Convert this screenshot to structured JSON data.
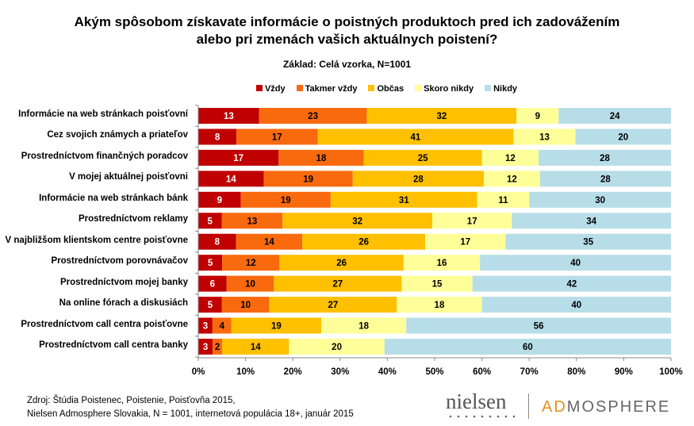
{
  "chart_data": {
    "type": "bar",
    "orientation": "horizontal",
    "stacked": true,
    "title": "Akým spôsobom získavate informácie o poistných produktoch pred ich zadovážením alebo pri zmenách vašich aktuálnych poistení?",
    "title_lines": [
      "Akým spôsobom získavate informácie o poistných produktoch pred ich zadovážením",
      "alebo pri zmenách vašich aktuálnych poistení?"
    ],
    "subtitle": "Základ: Celá vzorka, N=1001",
    "xlim": [
      0,
      100
    ],
    "xticks": [
      "0%",
      "10%",
      "20%",
      "30%",
      "40%",
      "50%",
      "60%",
      "70%",
      "80%",
      "90%",
      "100%"
    ],
    "legend_position": "top",
    "categories": [
      "Informácie na web stránkach poisťovní",
      "Cez svojich známych a priateľov",
      "Prostredníctvom finančných poradcov",
      "V mojej aktuálnej poisťovni",
      "Informácie na web stránkach bánk",
      "Prostredníctvom reklamy",
      "V najbližšom klientskom centre poisťovne",
      "Prostredníctvom porovnávačov",
      "Prostredníctvom mojej banky",
      "Na online fórach a diskusiách",
      "Prostredníctvom call centra poisťovne",
      "Prostredníctvom call centra banky"
    ],
    "series": [
      {
        "name": "Vždy",
        "color": "#c00000",
        "values": [
          13,
          8,
          17,
          14,
          9,
          5,
          8,
          5,
          6,
          5,
          3,
          3
        ]
      },
      {
        "name": "Takmer vždy",
        "color": "#f96a0e",
        "values": [
          23,
          17,
          18,
          19,
          19,
          13,
          14,
          12,
          10,
          10,
          4,
          2
        ]
      },
      {
        "name": "Občas",
        "color": "#ffc000",
        "values": [
          32,
          41,
          25,
          28,
          31,
          32,
          26,
          26,
          27,
          27,
          19,
          14
        ]
      },
      {
        "name": "Skoro nikdy",
        "color": "#ffff99",
        "values": [
          9,
          13,
          12,
          12,
          11,
          17,
          17,
          16,
          15,
          18,
          18,
          20
        ]
      },
      {
        "name": "Nikdy",
        "color": "#b7dde8",
        "values": [
          24,
          20,
          28,
          28,
          30,
          34,
          35,
          40,
          42,
          40,
          56,
          60
        ]
      }
    ]
  },
  "footer": {
    "source_line1": "Zdroj: Štúdia Poistenec, Poistenie, Poisťovňa 2015,",
    "source_line2": "Nielsen Admosphere Slovakia, N = 1001, internetová populácia 18+, január 2015"
  },
  "logos": {
    "nielsen": "nielsen",
    "admosphere_ad": "AD",
    "admosphere_rest": "MOSPHERE"
  }
}
